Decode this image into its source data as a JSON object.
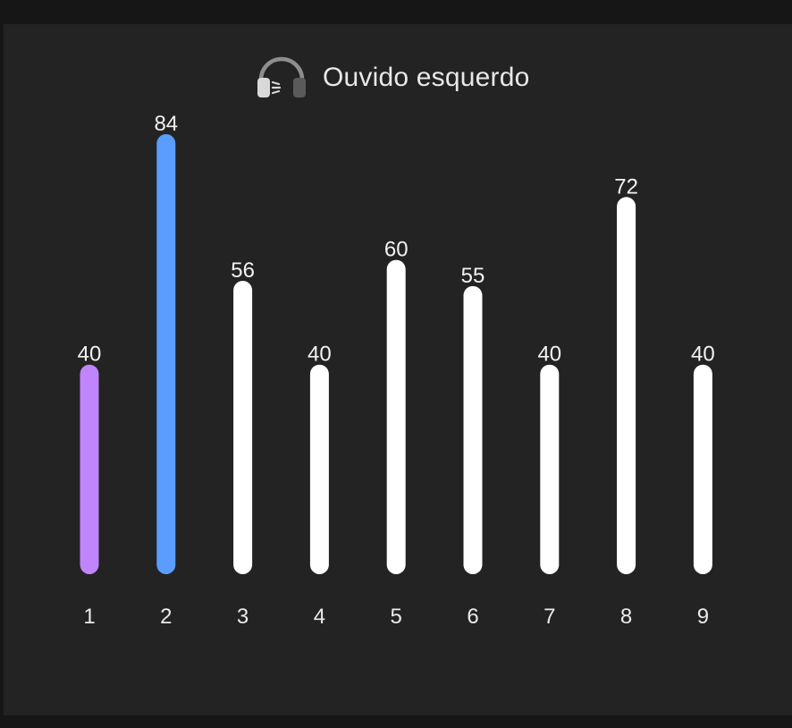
{
  "header": {
    "title": "Ouvido esquerdo",
    "icon": "headphones-left-icon"
  },
  "chart_data": {
    "type": "bar",
    "title": "Ouvido esquerdo",
    "categories": [
      "1",
      "2",
      "3",
      "4",
      "5",
      "6",
      "7",
      "8",
      "9"
    ],
    "values": [
      40,
      84,
      56,
      40,
      60,
      55,
      40,
      72,
      40
    ],
    "ylim": [
      0,
      84
    ],
    "grid": false,
    "legend": "none",
    "bar_colors": [
      "#c084fc",
      "#5b9dff",
      "#ffffff",
      "#ffffff",
      "#ffffff",
      "#ffffff",
      "#ffffff",
      "#ffffff",
      "#ffffff"
    ],
    "label_color": "#f2f2f2",
    "background": "#232323"
  }
}
